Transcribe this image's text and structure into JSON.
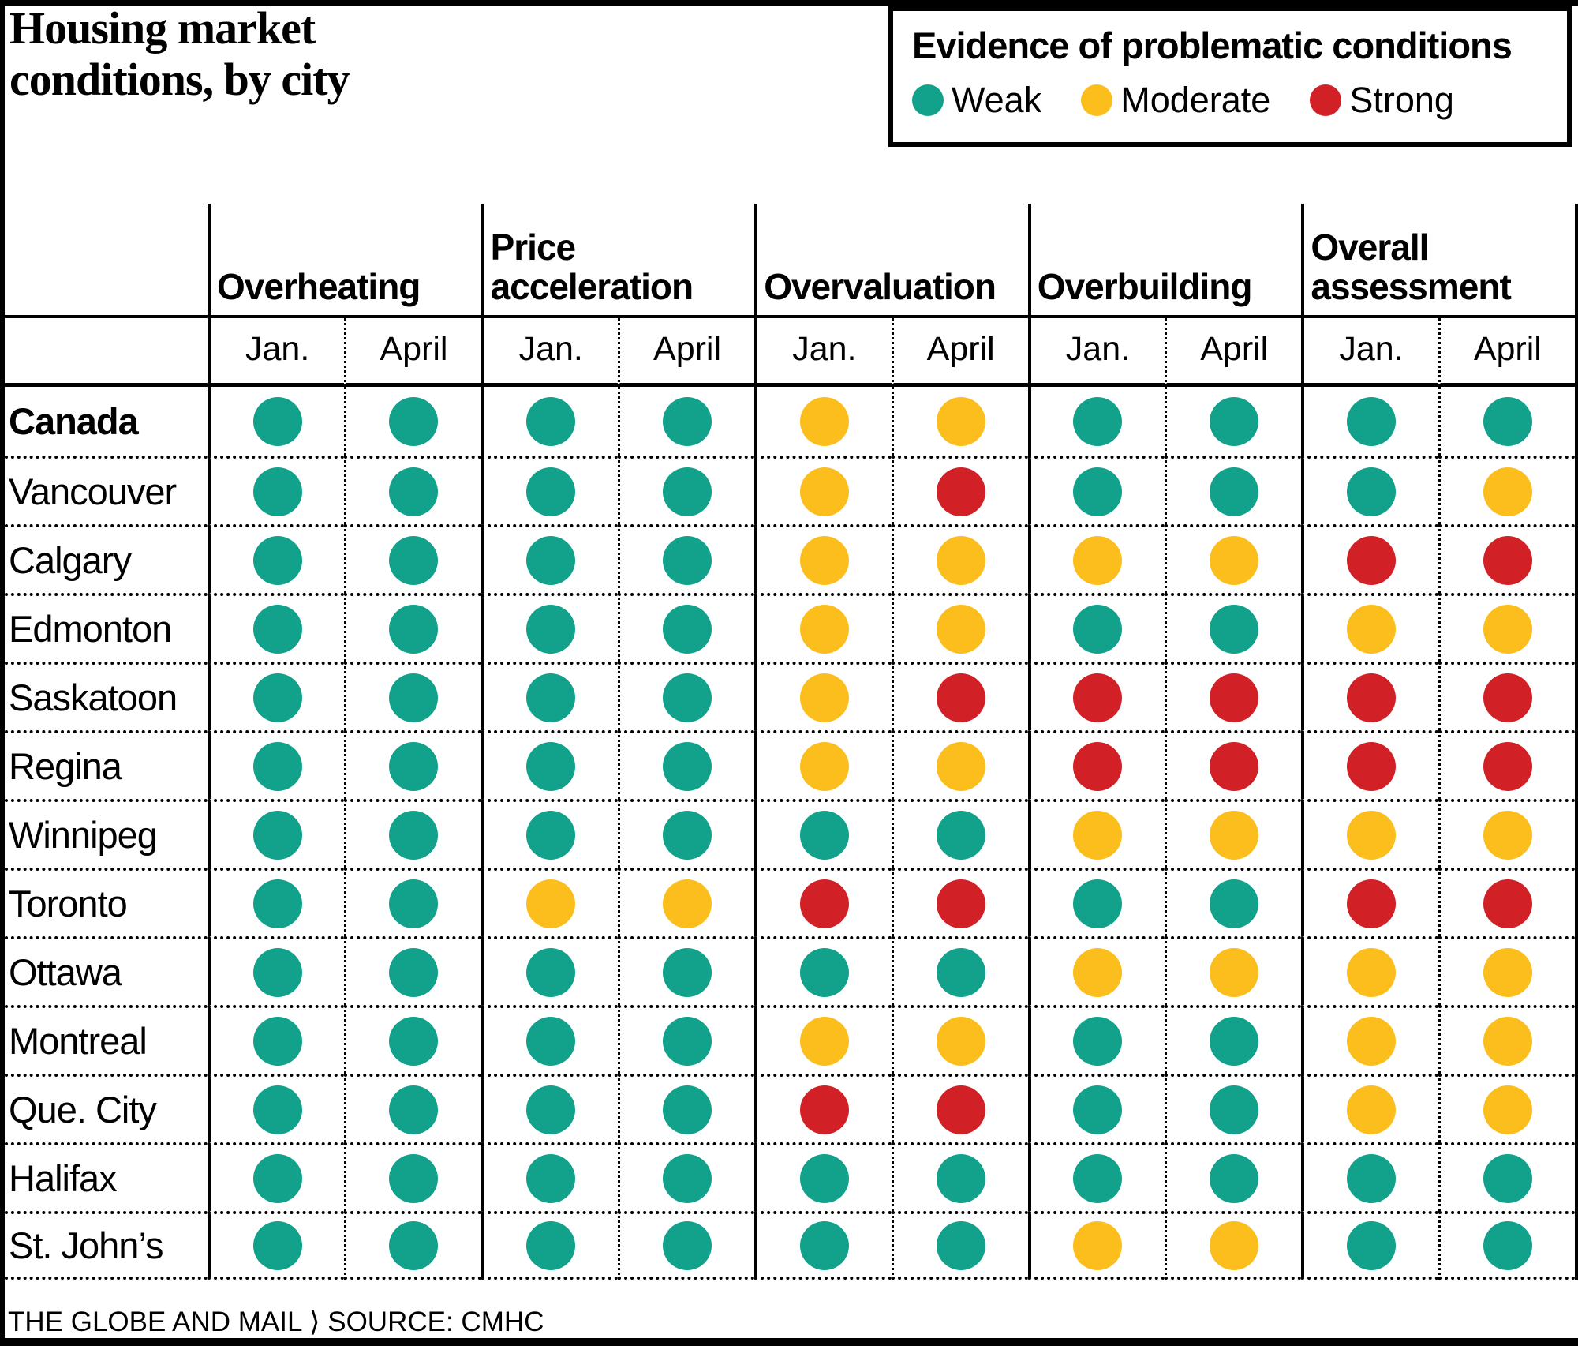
{
  "title_lines": [
    "Housing market",
    "conditions, by city"
  ],
  "legend": {
    "title": "Evidence of problematic conditions",
    "items": [
      {
        "code": "W",
        "label": "Weak",
        "color": "#12a28b"
      },
      {
        "code": "M",
        "label": "Moderate",
        "color": "#fcbe1d"
      },
      {
        "code": "S",
        "label": "Strong",
        "color": "#d22027"
      }
    ]
  },
  "footer": {
    "text": "THE GLOBE AND MAIL ⟩ SOURCE: CMHC"
  },
  "chart_data": {
    "type": "table",
    "column_groups": [
      "Overheating",
      "Price acceleration",
      "Overvaluation",
      "Overbuilding",
      "Overall assessment"
    ],
    "sub_columns": [
      "Jan.",
      "April"
    ],
    "scale": {
      "W": "#12a28b",
      "M": "#fcbe1d",
      "S": "#d22027"
    },
    "scale_labels": {
      "W": "Weak",
      "M": "Moderate",
      "S": "Strong"
    },
    "rows": [
      {
        "city": "Canada",
        "bold": true,
        "ratings": [
          [
            "W",
            "W"
          ],
          [
            "W",
            "W"
          ],
          [
            "M",
            "M"
          ],
          [
            "W",
            "W"
          ],
          [
            "W",
            "W"
          ]
        ]
      },
      {
        "city": "Vancouver",
        "bold": false,
        "ratings": [
          [
            "W",
            "W"
          ],
          [
            "W",
            "W"
          ],
          [
            "M",
            "S"
          ],
          [
            "W",
            "W"
          ],
          [
            "W",
            "M"
          ]
        ]
      },
      {
        "city": "Calgary",
        "bold": false,
        "ratings": [
          [
            "W",
            "W"
          ],
          [
            "W",
            "W"
          ],
          [
            "M",
            "M"
          ],
          [
            "M",
            "M"
          ],
          [
            "S",
            "S"
          ]
        ]
      },
      {
        "city": "Edmonton",
        "bold": false,
        "ratings": [
          [
            "W",
            "W"
          ],
          [
            "W",
            "W"
          ],
          [
            "M",
            "M"
          ],
          [
            "W",
            "W"
          ],
          [
            "M",
            "M"
          ]
        ]
      },
      {
        "city": "Saskatoon",
        "bold": false,
        "ratings": [
          [
            "W",
            "W"
          ],
          [
            "W",
            "W"
          ],
          [
            "M",
            "S"
          ],
          [
            "S",
            "S"
          ],
          [
            "S",
            "S"
          ]
        ]
      },
      {
        "city": "Regina",
        "bold": false,
        "ratings": [
          [
            "W",
            "W"
          ],
          [
            "W",
            "W"
          ],
          [
            "M",
            "M"
          ],
          [
            "S",
            "S"
          ],
          [
            "S",
            "S"
          ]
        ]
      },
      {
        "city": "Winnipeg",
        "bold": false,
        "ratings": [
          [
            "W",
            "W"
          ],
          [
            "W",
            "W"
          ],
          [
            "W",
            "W"
          ],
          [
            "M",
            "M"
          ],
          [
            "M",
            "M"
          ]
        ]
      },
      {
        "city": "Toronto",
        "bold": false,
        "ratings": [
          [
            "W",
            "W"
          ],
          [
            "M",
            "M"
          ],
          [
            "S",
            "S"
          ],
          [
            "W",
            "W"
          ],
          [
            "S",
            "S"
          ]
        ]
      },
      {
        "city": "Ottawa",
        "bold": false,
        "ratings": [
          [
            "W",
            "W"
          ],
          [
            "W",
            "W"
          ],
          [
            "W",
            "W"
          ],
          [
            "M",
            "M"
          ],
          [
            "M",
            "M"
          ]
        ]
      },
      {
        "city": "Montreal",
        "bold": false,
        "ratings": [
          [
            "W",
            "W"
          ],
          [
            "W",
            "W"
          ],
          [
            "M",
            "M"
          ],
          [
            "W",
            "W"
          ],
          [
            "M",
            "M"
          ]
        ]
      },
      {
        "city": "Que. City",
        "bold": false,
        "ratings": [
          [
            "W",
            "W"
          ],
          [
            "W",
            "W"
          ],
          [
            "S",
            "S"
          ],
          [
            "W",
            "W"
          ],
          [
            "M",
            "M"
          ]
        ]
      },
      {
        "city": "Halifax",
        "bold": false,
        "ratings": [
          [
            "W",
            "W"
          ],
          [
            "W",
            "W"
          ],
          [
            "W",
            "W"
          ],
          [
            "W",
            "W"
          ],
          [
            "W",
            "W"
          ]
        ]
      },
      {
        "city": "St. John’s",
        "bold": false,
        "ratings": [
          [
            "W",
            "W"
          ],
          [
            "W",
            "W"
          ],
          [
            "W",
            "W"
          ],
          [
            "M",
            "M"
          ],
          [
            "W",
            "W"
          ]
        ]
      }
    ]
  }
}
